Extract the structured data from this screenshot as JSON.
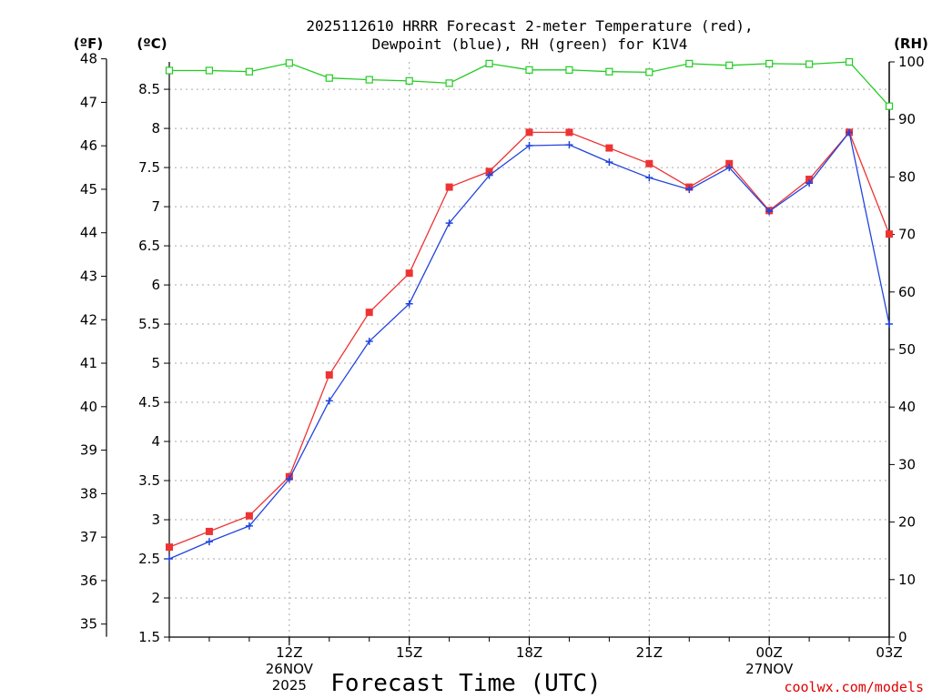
{
  "chart_data": {
    "type": "line",
    "title_line1": "2025112610 HRRR Forecast 2-meter Temperature (red),",
    "title_line2": "Dewpoint (blue), RH (green) for K1V4",
    "xlabel": "Forecast Time (UTC)",
    "credit": "coolwx.com/models",
    "left_outer_unit": "(ºF)",
    "left_inner_unit": "(ºC)",
    "right_unit": "(RH)",
    "x_hours": [
      9,
      10,
      11,
      12,
      13,
      14,
      15,
      16,
      17,
      18,
      19,
      20,
      21,
      22,
      23,
      24,
      25,
      26,
      27
    ],
    "xlim": [
      9,
      27
    ],
    "x_ticks": [
      {
        "hour": 12,
        "lines": [
          "12Z",
          "26NOV",
          "2025"
        ]
      },
      {
        "hour": 15,
        "lines": [
          "15Z"
        ]
      },
      {
        "hour": 18,
        "lines": [
          "18Z"
        ]
      },
      {
        "hour": 21,
        "lines": [
          "21Z"
        ]
      },
      {
        "hour": 24,
        "lines": [
          "00Z",
          "27NOV"
        ]
      },
      {
        "hour": 27,
        "lines": [
          "03Z"
        ]
      }
    ],
    "celsius_axis": {
      "range": [
        1.5,
        8.85
      ],
      "ticks": [
        "1.5",
        "2",
        "2.5",
        "3",
        "3.5",
        "4",
        "4.5",
        "5",
        "5.5",
        "6",
        "6.5",
        "7",
        "7.5",
        "8",
        "8.5"
      ]
    },
    "fahrenheit_axis": {
      "ticks": [
        "35",
        "36",
        "37",
        "38",
        "39",
        "40",
        "41",
        "42",
        "43",
        "44",
        "45",
        "46",
        "47",
        "48"
      ]
    },
    "rh_axis": {
      "range": [
        0,
        100
      ],
      "ticks": [
        "0",
        "10",
        "20",
        "30",
        "40",
        "50",
        "60",
        "70",
        "80",
        "90",
        "100"
      ]
    },
    "series": [
      {
        "name": "Temperature",
        "unit": "C",
        "color": "#ee3333",
        "marker": "filled-square",
        "values": [
          2.65,
          2.85,
          3.05,
          3.55,
          4.85,
          5.65,
          6.15,
          7.25,
          7.45,
          7.95,
          7.95,
          7.75,
          7.55,
          7.25,
          7.55,
          6.95,
          7.35,
          7.95,
          6.65
        ]
      },
      {
        "name": "Dewpoint",
        "unit": "C",
        "color": "#2244dd",
        "marker": "plus",
        "values": [
          2.5,
          2.72,
          2.92,
          3.52,
          4.52,
          5.28,
          5.76,
          6.79,
          7.4,
          7.78,
          7.79,
          7.57,
          7.37,
          7.22,
          7.5,
          6.94,
          7.3,
          7.95,
          5.5
        ]
      },
      {
        "name": "RH",
        "unit": "%",
        "color": "#22cc22",
        "marker": "open-square",
        "values": [
          98.5,
          98.5,
          98.3,
          99.8,
          97.2,
          96.9,
          96.7,
          96.3,
          99.7,
          98.6,
          98.6,
          98.3,
          98.2,
          99.7,
          99.4,
          99.7,
          99.6,
          100,
          92.3
        ]
      }
    ]
  }
}
